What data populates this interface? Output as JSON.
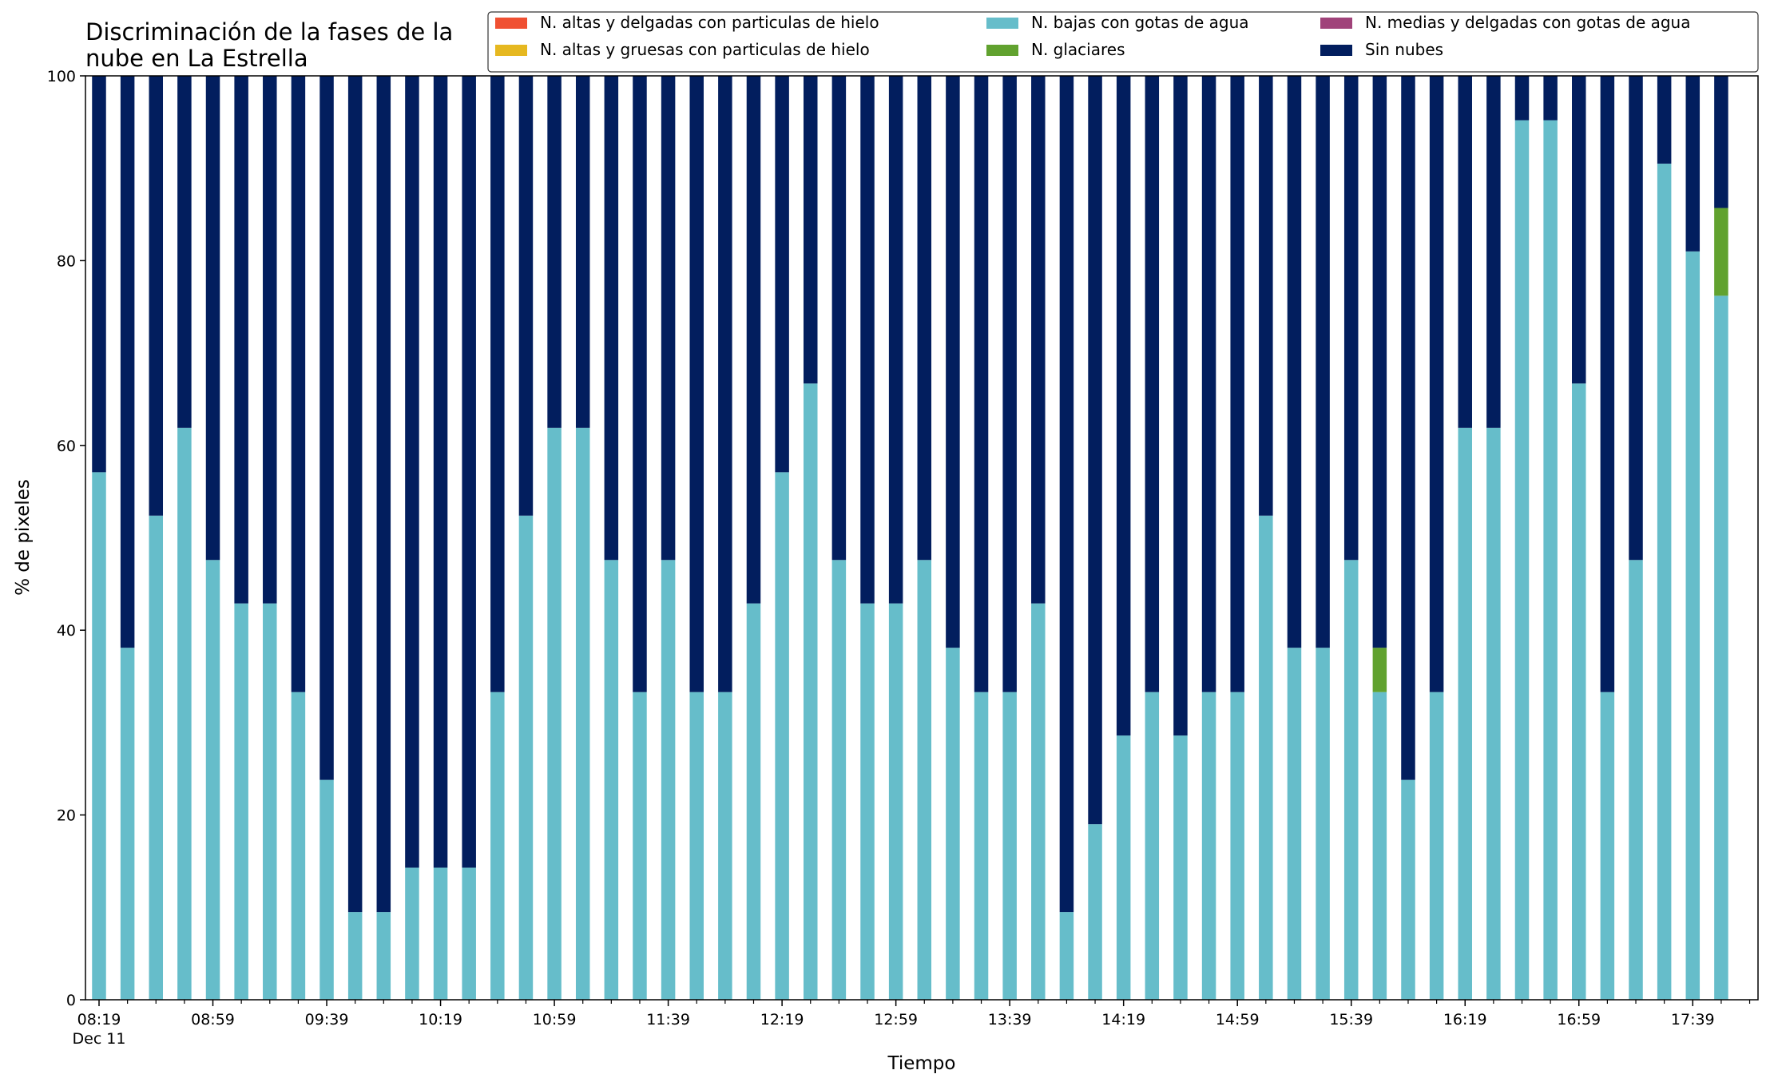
{
  "chart_data": {
    "type": "bar",
    "stacked": true,
    "title_lines": [
      "Discriminación de la fases de la",
      "nube en La Estrella"
    ],
    "xlabel": "Tiempo",
    "ylabel": "% de pixeles",
    "ylim": [
      0,
      100
    ],
    "yticks": [
      0,
      20,
      40,
      60,
      80,
      100
    ],
    "xtick_labels": [
      "08:19",
      "08:59",
      "09:39",
      "10:19",
      "10:59",
      "11:39",
      "12:19",
      "12:59",
      "13:39",
      "14:19",
      "14:59",
      "15:39",
      "16:19",
      "16:59",
      "17:39"
    ],
    "xtick_sublabel": "Dec 11",
    "grid": false,
    "legend_position": "top-right",
    "categories": [
      "08:19",
      "08:29",
      "08:39",
      "08:49",
      "08:59",
      "09:09",
      "09:19",
      "09:29",
      "09:39",
      "09:49",
      "09:59",
      "10:09",
      "10:19",
      "10:29",
      "10:39",
      "10:49",
      "10:59",
      "11:09",
      "11:19",
      "11:29",
      "11:39",
      "11:49",
      "11:59",
      "12:09",
      "12:19",
      "12:29",
      "12:39",
      "12:49",
      "12:59",
      "13:09",
      "13:19",
      "13:29",
      "13:39",
      "13:49",
      "13:59",
      "14:09",
      "14:19",
      "14:29",
      "14:39",
      "14:49",
      "14:59",
      "15:09",
      "15:19",
      "15:29",
      "15:39",
      "15:49",
      "15:59",
      "16:09",
      "16:19",
      "16:29",
      "16:39",
      "16:49",
      "16:59",
      "17:09",
      "17:19",
      "17:29",
      "17:39",
      "17:49"
    ],
    "series": [
      {
        "name": "N. altas y delgadas con particulas de hielo",
        "color": "#f05032",
        "values": [
          0,
          0,
          0,
          0,
          0,
          0,
          0,
          0,
          0,
          0,
          0,
          0,
          0,
          0,
          0,
          0,
          0,
          0,
          0,
          0,
          0,
          0,
          0,
          0,
          0,
          0,
          0,
          0,
          0,
          0,
          0,
          0,
          0,
          0,
          0,
          0,
          0,
          0,
          0,
          0,
          0,
          0,
          0,
          0,
          0,
          0,
          0,
          0,
          0,
          0,
          0,
          0,
          0,
          0,
          0,
          0,
          0,
          0
        ]
      },
      {
        "name": "N. altas y gruesas con particulas de hielo",
        "color": "#e6b820",
        "values": [
          0,
          0,
          0,
          0,
          0,
          0,
          0,
          0,
          0,
          0,
          0,
          0,
          0,
          0,
          0,
          0,
          0,
          0,
          0,
          0,
          0,
          0,
          0,
          0,
          0,
          0,
          0,
          0,
          0,
          0,
          0,
          0,
          0,
          0,
          0,
          0,
          0,
          0,
          0,
          0,
          0,
          0,
          0,
          0,
          0,
          0,
          0,
          0,
          0,
          0,
          0,
          0,
          0,
          0,
          0,
          0,
          0,
          0
        ]
      },
      {
        "name": "N. bajas con gotas de agua",
        "color": "#66bdca",
        "values": [
          57.1,
          38.1,
          52.4,
          61.9,
          47.6,
          42.9,
          42.9,
          33.3,
          23.8,
          9.5,
          9.5,
          14.3,
          14.3,
          14.3,
          33.3,
          52.4,
          61.9,
          61.9,
          47.6,
          33.3,
          47.6,
          33.3,
          33.3,
          42.9,
          57.1,
          66.7,
          47.6,
          42.9,
          42.9,
          47.6,
          38.1,
          33.3,
          33.3,
          42.9,
          9.5,
          19.0,
          28.6,
          33.3,
          28.6,
          33.3,
          33.3,
          52.4,
          38.1,
          38.1,
          47.6,
          33.3,
          23.8,
          33.3,
          61.9,
          61.9,
          95.2,
          95.2,
          66.7,
          33.3,
          47.6,
          90.5,
          81.0,
          76.2
        ]
      },
      {
        "name": "N. glaciares",
        "color": "#61a22f",
        "values": [
          0,
          0,
          0,
          0,
          0,
          0,
          0,
          0,
          0,
          0,
          0,
          0,
          0,
          0,
          0,
          0,
          0,
          0,
          0,
          0,
          0,
          0,
          0,
          0,
          0,
          0,
          0,
          0,
          0,
          0,
          0,
          0,
          0,
          0,
          0,
          0,
          0,
          0,
          0,
          0,
          0,
          0,
          0,
          0,
          0,
          4.8,
          0,
          0,
          0,
          0,
          0,
          0,
          0,
          0,
          0,
          0,
          0,
          9.5
        ]
      },
      {
        "name": "N. medias y delgadas con gotas de agua",
        "color": "#a0437a",
        "values": [
          0,
          0,
          0,
          0,
          0,
          0,
          0,
          0,
          0,
          0,
          0,
          0,
          0,
          0,
          0,
          0,
          0,
          0,
          0,
          0,
          0,
          0,
          0,
          0,
          0,
          0,
          0,
          0,
          0,
          0,
          0,
          0,
          0,
          0,
          0,
          0,
          0,
          0,
          0,
          0,
          0,
          0,
          0,
          0,
          0,
          0,
          0,
          0,
          0,
          0,
          0,
          0,
          0,
          0,
          0,
          0,
          0,
          0
        ]
      },
      {
        "name": "Sin nubes",
        "color": "#021e5e",
        "values": [
          42.9,
          61.9,
          47.6,
          38.1,
          52.4,
          57.1,
          57.1,
          66.7,
          76.2,
          90.5,
          90.5,
          85.7,
          85.7,
          85.7,
          66.7,
          47.6,
          38.1,
          38.1,
          52.4,
          66.7,
          52.4,
          66.7,
          66.7,
          57.1,
          42.9,
          33.3,
          52.4,
          57.1,
          57.1,
          52.4,
          61.9,
          66.7,
          66.7,
          57.1,
          90.5,
          81.0,
          71.4,
          66.7,
          71.4,
          66.7,
          66.7,
          47.6,
          61.9,
          61.9,
          52.4,
          61.9,
          76.2,
          66.7,
          38.1,
          38.1,
          4.8,
          4.8,
          33.3,
          66.7,
          52.4,
          9.5,
          19.0,
          14.3
        ]
      }
    ]
  }
}
